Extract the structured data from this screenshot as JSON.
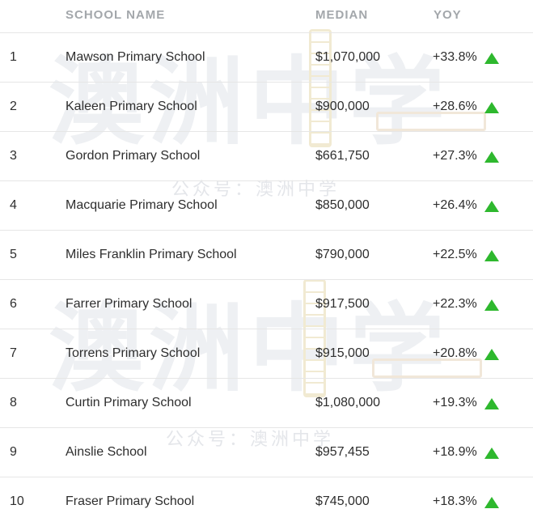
{
  "header": {
    "school_name": "SCHOOL NAME",
    "median": "MEDIAN",
    "yoy": "YOY"
  },
  "rows": [
    {
      "rank": "1",
      "school": "Mawson Primary School",
      "median": "$1,070,000",
      "yoy": "+33.8%"
    },
    {
      "rank": "2",
      "school": "Kaleen Primary School",
      "median": "$900,000",
      "yoy": "+28.6%"
    },
    {
      "rank": "3",
      "school": "Gordon Primary School",
      "median": "$661,750",
      "yoy": "+27.3%"
    },
    {
      "rank": "4",
      "school": "Macquarie Primary School",
      "median": "$850,000",
      "yoy": "+26.4%"
    },
    {
      "rank": "5",
      "school": "Miles Franklin Primary School",
      "median": "$790,000",
      "yoy": "+22.5%"
    },
    {
      "rank": "6",
      "school": "Farrer Primary School",
      "median": "$917,500",
      "yoy": "+22.3%"
    },
    {
      "rank": "7",
      "school": "Torrens Primary School",
      "median": "$915,000",
      "yoy": "+20.8%"
    },
    {
      "rank": "8",
      "school": "Curtin Primary School",
      "median": "$1,080,000",
      "yoy": "+19.3%"
    },
    {
      "rank": "9",
      "school": "Ainslie School",
      "median": "$957,455",
      "yoy": "+18.9%"
    },
    {
      "rank": "10",
      "school": "Fraser Primary School",
      "median": "$745,000",
      "yoy": "+18.3%"
    }
  ],
  "colors": {
    "up_arrow": "#2eb82e",
    "header_text": "#a3a7ab",
    "divider": "#e6e6e6"
  },
  "icons": {
    "trend": "up-triangle-icon"
  },
  "watermark": {
    "big_text": "澳洲中学",
    "small_text": "公众号：澳洲中学"
  }
}
